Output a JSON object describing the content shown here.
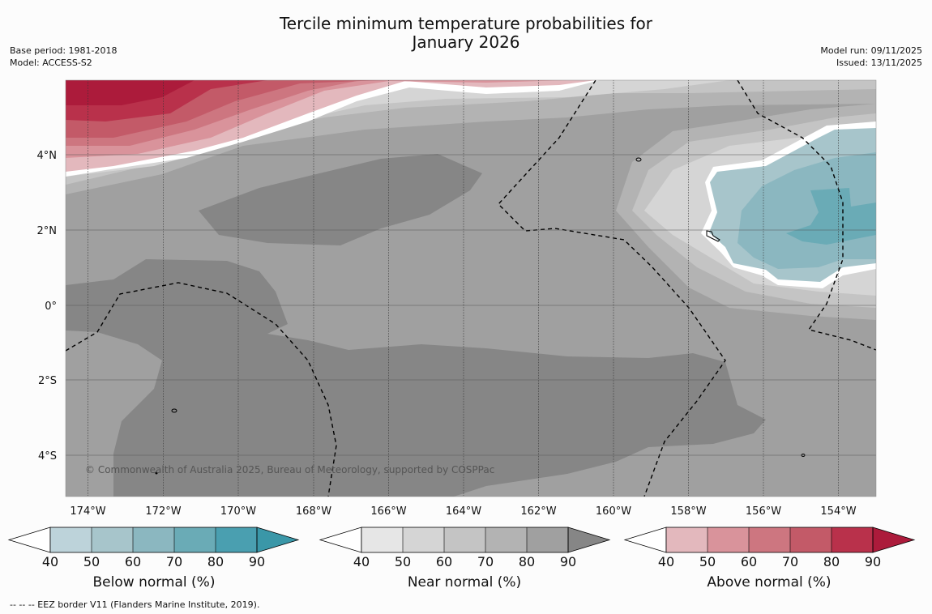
{
  "title": {
    "line1": "Tercile minimum temperature probabilities for",
    "line2": "January 2026"
  },
  "meta": {
    "base_period": "Base period: 1981-2018",
    "model": "Model: ACCESS-S2",
    "model_run": "Model run: 09/11/2025",
    "issued": "Issued: 13/11/2025"
  },
  "map": {
    "lon_labels": [
      "174°W",
      "172°W",
      "170°W",
      "168°W",
      "166°W",
      "164°W",
      "162°W",
      "160°W",
      "158°W",
      "156°W",
      "154°W"
    ],
    "lat_labels": [
      "4°N",
      "2°N",
      "0°",
      "2°S",
      "4°S"
    ],
    "copyright": "© Commonwealth of Australia 2025, Bureau of Meteorology, supported by COSPPac"
  },
  "colorbars": [
    {
      "title": "Below normal (%)",
      "ticks": [
        "40",
        "50",
        "60",
        "70",
        "80",
        "90"
      ],
      "colors": [
        "#ffffff",
        "#bdd3da",
        "#a7c5cb",
        "#8bb7c0",
        "#6aabb6",
        "#4a9fb0",
        "#3a97a8"
      ]
    },
    {
      "title": "Near normal (%)",
      "ticks": [
        "40",
        "50",
        "60",
        "70",
        "80",
        "90"
      ],
      "colors": [
        "#ffffff",
        "#e6e6e6",
        "#d5d5d5",
        "#c4c4c4",
        "#b3b3b3",
        "#a0a0a0",
        "#868686"
      ]
    },
    {
      "title": "Above normal (%)",
      "ticks": [
        "40",
        "50",
        "60",
        "70",
        "80",
        "90"
      ],
      "colors": [
        "#ffffff",
        "#e3b8bd",
        "#d9939b",
        "#cd7680",
        "#c35a68",
        "#b9314b",
        "#ac1b3b"
      ]
    }
  ],
  "footer": "--  --  -- EEZ border V11 (Flanders Marine Institute, 2019)."
}
